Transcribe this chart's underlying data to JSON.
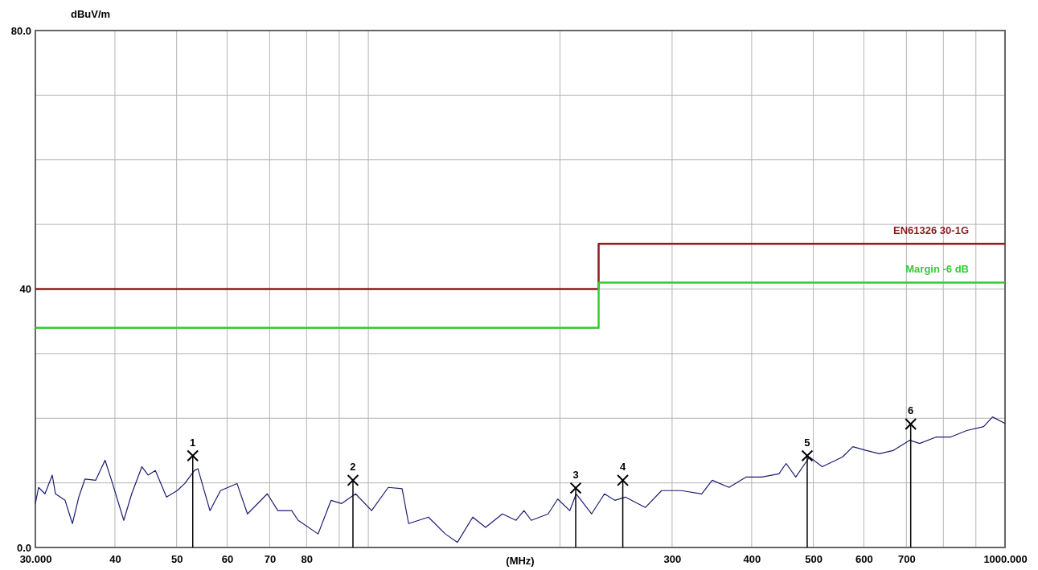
{
  "chart_data": {
    "type": "line",
    "xlabel": "(MHz)",
    "ylabel": "dBuV/m",
    "log": "x",
    "grid": true,
    "xlim": [
      30,
      1000
    ],
    "ylim": [
      0,
      80
    ],
    "xticks": [
      {
        "value": 30,
        "label": "30.000"
      },
      40,
      50,
      60,
      70,
      80,
      {
        "value": 90,
        "label": null
      },
      {
        "value": 100,
        "label": null
      },
      {
        "value": 200,
        "label": null
      },
      300,
      400,
      500,
      600,
      700,
      {
        "value": 800,
        "label": null
      },
      {
        "value": 900,
        "label": null
      },
      {
        "value": 1000,
        "label": "1000.000"
      }
    ],
    "yticks": [
      {
        "value": 0,
        "label": "0.0"
      },
      {
        "value": 10,
        "label": null
      },
      {
        "value": 20,
        "label": null
      },
      {
        "value": 30,
        "label": null
      },
      40,
      {
        "value": 50,
        "label": null
      },
      {
        "value": 60,
        "label": null
      },
      {
        "value": 70,
        "label": null
      },
      {
        "value": 80,
        "label": "80.0"
      }
    ],
    "series": [
      {
        "type": "line",
        "color": "#1c1c72",
        "marker": "none",
        "x": [
          30,
          30.35,
          31.06,
          31.89,
          32.26,
          33.4,
          34.3,
          35.1,
          35.9,
          37.3,
          38.6,
          39.6,
          41.3,
          42.5,
          44.1,
          45.1,
          46.3,
          48.2,
          50.1,
          51.5,
          53.3,
          54.0,
          56.4,
          58.6,
          62.2,
          64.6,
          69.4,
          72.1,
          75.8,
          77.6,
          83.4,
          87.4,
          90.8,
          95.5,
          101.2,
          107.5,
          113.0,
          115.7,
          124.3,
          132.1,
          138.0,
          145.9,
          152.8,
          162.4,
          170.6,
          175.6,
          180.3,
          191.6,
          198.4,
          207.2,
          212.1,
          224.2,
          234.9,
          243.9,
          253.3,
          272.4,
          288.8,
          310.5,
          333.9,
          346.8,
          368.6,
          391.8,
          415.2,
          441.4,
          453.1,
          469.2,
          493.0,
          516.4,
          555.4,
          576.8,
          605.9,
          634.8,
          667.0,
          708.9,
          734.1,
          780.3,
          821.9,
          870.8,
          925.6,
          955.7,
          1000
        ],
        "values": [
          6.8,
          9.3,
          8.3,
          11.2,
          8.3,
          7.3,
          3.7,
          7.8,
          10.6,
          10.4,
          13.5,
          10.1,
          4.2,
          8.3,
          12.5,
          11.2,
          11.9,
          7.8,
          8.8,
          9.9,
          11.9,
          12.2,
          5.7,
          8.8,
          9.9,
          5.2,
          8.3,
          5.7,
          5.7,
          4.2,
          2.1,
          7.3,
          6.8,
          8.3,
          5.7,
          9.3,
          9.1,
          3.7,
          4.7,
          2.1,
          0.8,
          4.7,
          3.1,
          5.2,
          4.2,
          5.7,
          4.2,
          5.2,
          7.5,
          5.7,
          8.3,
          5.2,
          8.3,
          7.3,
          7.8,
          6.2,
          8.8,
          8.8,
          8.3,
          10.4,
          9.3,
          10.9,
          10.9,
          11.4,
          13.0,
          10.9,
          14.0,
          12.5,
          14.0,
          15.6,
          15.0,
          14.5,
          15.0,
          16.6,
          16.1,
          17.1,
          17.1,
          18.1,
          18.7,
          20.2,
          19.2
        ]
      },
      {
        "type": "step",
        "name": "EN61326 30-1G",
        "color": "#8b1c1c",
        "marker": "none",
        "x": [
          30,
          230,
          1000
        ],
        "values": [
          40,
          47,
          47
        ]
      },
      {
        "type": "step",
        "name": "Margin -6 dB",
        "color": "#33cc33",
        "marker": "none",
        "x": [
          30,
          230,
          1000
        ],
        "values": [
          34,
          41,
          41
        ]
      },
      {
        "type": "lollipop",
        "color": "#000000",
        "marker": "cross",
        "x": [
          53.0,
          94.6,
          211.7,
          251,
          489,
          711
        ],
        "values": [
          14.2,
          10.4,
          9.2,
          10.4,
          14.2,
          19.1
        ]
      }
    ],
    "annotations": [
      {
        "text": "1",
        "x": 53.0,
        "y": 14.2
      },
      {
        "text": "2",
        "x": 94.6,
        "y": 10.4
      },
      {
        "text": "3",
        "x": 211.7,
        "y": 9.2
      },
      {
        "text": "4",
        "x": 251,
        "y": 10.4
      },
      {
        "text": "5",
        "x": 489,
        "y": 14.2
      },
      {
        "text": "6",
        "x": 711,
        "y": 19.1
      }
    ]
  }
}
